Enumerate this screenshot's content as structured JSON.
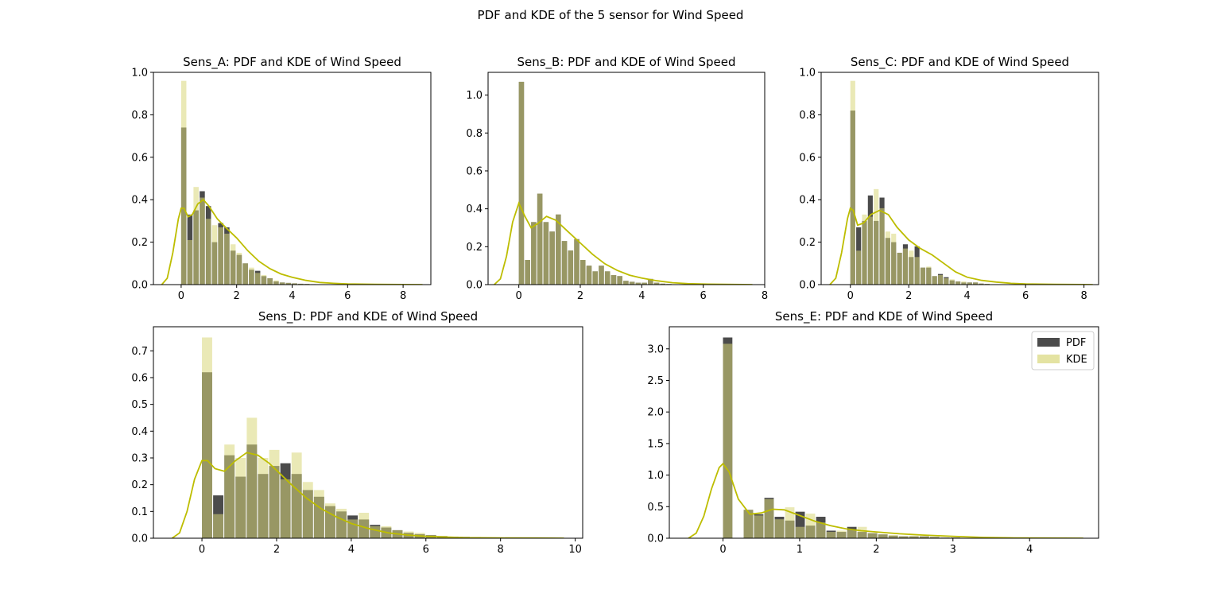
{
  "figure": {
    "suptitle": "PDF and KDE of the 5 sensor for Wind Speed"
  },
  "colors": {
    "pdf": "#2b2b2b",
    "kde_hist": "#d9d77a",
    "kde_line": "#bdbd00"
  },
  "legend": {
    "location": "upper right",
    "pdf_label": "PDF",
    "kde_label": "KDE"
  },
  "chart_data": [
    {
      "type": "bar",
      "title": "Sens_A: PDF and KDE of Wind Speed",
      "xlim": [
        -1,
        9
      ],
      "ylim": [
        0,
        1.0
      ],
      "xticks": [
        0,
        2,
        4,
        6,
        8
      ],
      "yticks": [
        0.0,
        0.2,
        0.4,
        0.6,
        0.8,
        1.0
      ],
      "bin_width": 0.222,
      "bins_start": 0,
      "pdf": [
        0.74,
        0.33,
        0.35,
        0.44,
        0.37,
        0.2,
        0.29,
        0.27,
        0.16,
        0.14,
        0.1,
        0.07,
        0.065,
        0.04,
        0.03,
        0.015,
        0.01,
        0.008,
        0.006,
        0.004,
        0.003,
        0.002
      ],
      "kde_hist": [
        0.96,
        0.21,
        0.46,
        0.41,
        0.31,
        0.28,
        0.27,
        0.24,
        0.19,
        0.15,
        0.1,
        0.08,
        0.055,
        0.045,
        0.03,
        0.02,
        0.01,
        0.008,
        0.006,
        0.004,
        0.003,
        0.002
      ],
      "kde_curve": {
        "x": [
          -0.7,
          -0.5,
          -0.3,
          -0.1,
          0.0,
          0.1,
          0.25,
          0.4,
          0.6,
          0.8,
          1.0,
          1.3,
          1.6,
          2.0,
          2.4,
          2.8,
          3.2,
          3.6,
          4.0,
          4.5,
          5.0,
          5.5,
          6.0,
          7.0,
          8.0,
          8.7
        ],
        "y": [
          0.0,
          0.03,
          0.15,
          0.31,
          0.36,
          0.36,
          0.32,
          0.33,
          0.38,
          0.4,
          0.37,
          0.31,
          0.27,
          0.22,
          0.16,
          0.11,
          0.075,
          0.05,
          0.035,
          0.02,
          0.01,
          0.006,
          0.003,
          0.001,
          0.0005,
          0.0
        ]
      }
    },
    {
      "type": "bar",
      "title": "Sens_B: PDF and KDE of Wind Speed",
      "xlim": [
        -1,
        8
      ],
      "ylim": [
        0,
        1.12
      ],
      "xticks": [
        0,
        2,
        4,
        6,
        8
      ],
      "yticks": [
        0.0,
        0.2,
        0.4,
        0.6,
        0.8,
        1.0
      ],
      "bin_width": 0.2,
      "bins_start": 0,
      "pdf": [
        1.07,
        0.13,
        0.33,
        0.48,
        0.33,
        0.28,
        0.37,
        0.23,
        0.18,
        0.24,
        0.13,
        0.1,
        0.07,
        0.1,
        0.07,
        0.05,
        0.045,
        0.02,
        0.015,
        0.01,
        0.01,
        0.03,
        0.01,
        0.005,
        0.003
      ],
      "kde_hist": [
        1.07,
        0.13,
        0.33,
        0.48,
        0.33,
        0.28,
        0.37,
        0.23,
        0.18,
        0.24,
        0.13,
        0.1,
        0.07,
        0.1,
        0.07,
        0.05,
        0.045,
        0.02,
        0.015,
        0.01,
        0.01,
        0.03,
        0.01,
        0.005,
        0.003
      ],
      "kde_curve": {
        "x": [
          -0.8,
          -0.6,
          -0.4,
          -0.2,
          0.0,
          0.2,
          0.4,
          0.6,
          0.9,
          1.2,
          1.6,
          2.0,
          2.4,
          2.8,
          3.2,
          3.6,
          4.0,
          4.5,
          5.0,
          5.5,
          6.0,
          7.0,
          7.6
        ],
        "y": [
          0.0,
          0.03,
          0.15,
          0.33,
          0.43,
          0.36,
          0.3,
          0.32,
          0.36,
          0.34,
          0.28,
          0.22,
          0.16,
          0.11,
          0.075,
          0.05,
          0.035,
          0.02,
          0.01,
          0.005,
          0.003,
          0.001,
          0.0
        ]
      }
    },
    {
      "type": "bar",
      "title": "Sens_C: PDF and KDE of Wind Speed",
      "xlim": [
        -1,
        8.5
      ],
      "ylim": [
        0,
        1.0
      ],
      "xticks": [
        0,
        2,
        4,
        6,
        8
      ],
      "yticks": [
        0.0,
        0.2,
        0.4,
        0.6,
        0.8,
        1.0
      ],
      "bin_width": 0.2,
      "bins_start": 0,
      "pdf": [
        0.82,
        0.27,
        0.3,
        0.42,
        0.3,
        0.41,
        0.22,
        0.2,
        0.15,
        0.19,
        0.13,
        0.18,
        0.08,
        0.08,
        0.04,
        0.05,
        0.035,
        0.02,
        0.015,
        0.01,
        0.01,
        0.01,
        0.005,
        0.003
      ],
      "kde_hist": [
        0.96,
        0.16,
        0.33,
        0.32,
        0.45,
        0.36,
        0.25,
        0.24,
        0.15,
        0.17,
        0.16,
        0.13,
        0.08,
        0.085,
        0.04,
        0.045,
        0.03,
        0.025,
        0.015,
        0.015,
        0.01,
        0.01,
        0.005,
        0.003
      ],
      "kde_curve": {
        "x": [
          -0.7,
          -0.5,
          -0.3,
          -0.1,
          0.0,
          0.1,
          0.25,
          0.45,
          0.7,
          1.0,
          1.3,
          1.6,
          2.0,
          2.4,
          2.8,
          3.2,
          3.6,
          4.0,
          4.5,
          5.0,
          5.5,
          6.0,
          7.0,
          8.0,
          8.3
        ],
        "y": [
          0.0,
          0.03,
          0.15,
          0.31,
          0.36,
          0.35,
          0.28,
          0.29,
          0.33,
          0.35,
          0.33,
          0.27,
          0.21,
          0.17,
          0.14,
          0.1,
          0.06,
          0.035,
          0.02,
          0.012,
          0.006,
          0.003,
          0.001,
          0.0005,
          0.0
        ]
      }
    },
    {
      "type": "bar",
      "title": "Sens_D: PDF and KDE of Wind Speed",
      "xlim": [
        -1.3,
        10.2
      ],
      "ylim": [
        0,
        0.79
      ],
      "xticks": [
        0,
        2,
        4,
        6,
        8,
        10
      ],
      "yticks": [
        0.0,
        0.1,
        0.2,
        0.3,
        0.4,
        0.5,
        0.6,
        0.7
      ],
      "bin_width": 0.3,
      "bins_start": 0,
      "pdf": [
        0.62,
        0.16,
        0.31,
        0.23,
        0.35,
        0.24,
        0.27,
        0.28,
        0.24,
        0.18,
        0.155,
        0.12,
        0.1,
        0.085,
        0.07,
        0.05,
        0.04,
        0.03,
        0.02,
        0.015,
        0.012,
        0.008,
        0.006,
        0.005,
        0.004
      ],
      "kde_hist": [
        0.75,
        0.09,
        0.35,
        0.3,
        0.45,
        0.3,
        0.33,
        0.22,
        0.32,
        0.21,
        0.18,
        0.13,
        0.11,
        0.07,
        0.095,
        0.045,
        0.045,
        0.03,
        0.025,
        0.02,
        0.012,
        0.008,
        0.006,
        0.005,
        0.004
      ],
      "kde_curve": {
        "x": [
          -0.8,
          -0.6,
          -0.4,
          -0.2,
          0.0,
          0.15,
          0.35,
          0.6,
          0.9,
          1.2,
          1.5,
          1.8,
          2.1,
          2.4,
          2.8,
          3.2,
          3.6,
          4.0,
          4.5,
          5.0,
          5.5,
          6.0,
          7.0,
          8.0,
          9.0,
          9.7
        ],
        "y": [
          0.0,
          0.02,
          0.1,
          0.22,
          0.29,
          0.29,
          0.26,
          0.25,
          0.29,
          0.32,
          0.31,
          0.28,
          0.24,
          0.2,
          0.15,
          0.11,
          0.08,
          0.055,
          0.035,
          0.02,
          0.012,
          0.007,
          0.002,
          0.001,
          0.0005,
          0.0
        ]
      }
    },
    {
      "type": "bar",
      "title": "Sens_E: PDF and KDE of Wind Speed",
      "xlim": [
        -0.7,
        4.9
      ],
      "ylim": [
        0,
        3.35
      ],
      "xticks": [
        0,
        1,
        2,
        3,
        4
      ],
      "yticks": [
        0.0,
        0.5,
        1.0,
        1.5,
        2.0,
        2.5,
        3.0
      ],
      "bin_width": 0.135,
      "bins_start": 0,
      "pdf": [
        3.18,
        0.0,
        0.45,
        0.38,
        0.64,
        0.34,
        0.28,
        0.42,
        0.2,
        0.34,
        0.12,
        0.1,
        0.18,
        0.1,
        0.08,
        0.06,
        0.04,
        0.03,
        0.03,
        0.03,
        0.02,
        0.01,
        0.01,
        0.005,
        0.005
      ],
      "kde_hist": [
        3.08,
        0.0,
        0.45,
        0.36,
        0.62,
        0.3,
        0.49,
        0.18,
        0.39,
        0.25,
        0.1,
        0.12,
        0.13,
        0.18,
        0.08,
        0.06,
        0.05,
        0.03,
        0.035,
        0.03,
        0.02,
        0.01,
        0.01,
        0.005,
        0.005
      ],
      "kde_curve": {
        "x": [
          -0.45,
          -0.35,
          -0.25,
          -0.15,
          -0.05,
          0.0,
          0.08,
          0.2,
          0.35,
          0.5,
          0.65,
          0.8,
          1.0,
          1.2,
          1.4,
          1.6,
          1.8,
          2.0,
          2.3,
          2.6,
          3.0,
          3.4,
          3.8,
          4.2,
          4.7
        ],
        "y": [
          0.0,
          0.08,
          0.35,
          0.78,
          1.12,
          1.18,
          1.05,
          0.62,
          0.38,
          0.4,
          0.46,
          0.45,
          0.36,
          0.27,
          0.2,
          0.15,
          0.12,
          0.1,
          0.07,
          0.05,
          0.03,
          0.012,
          0.005,
          0.002,
          0.0
        ]
      }
    }
  ]
}
